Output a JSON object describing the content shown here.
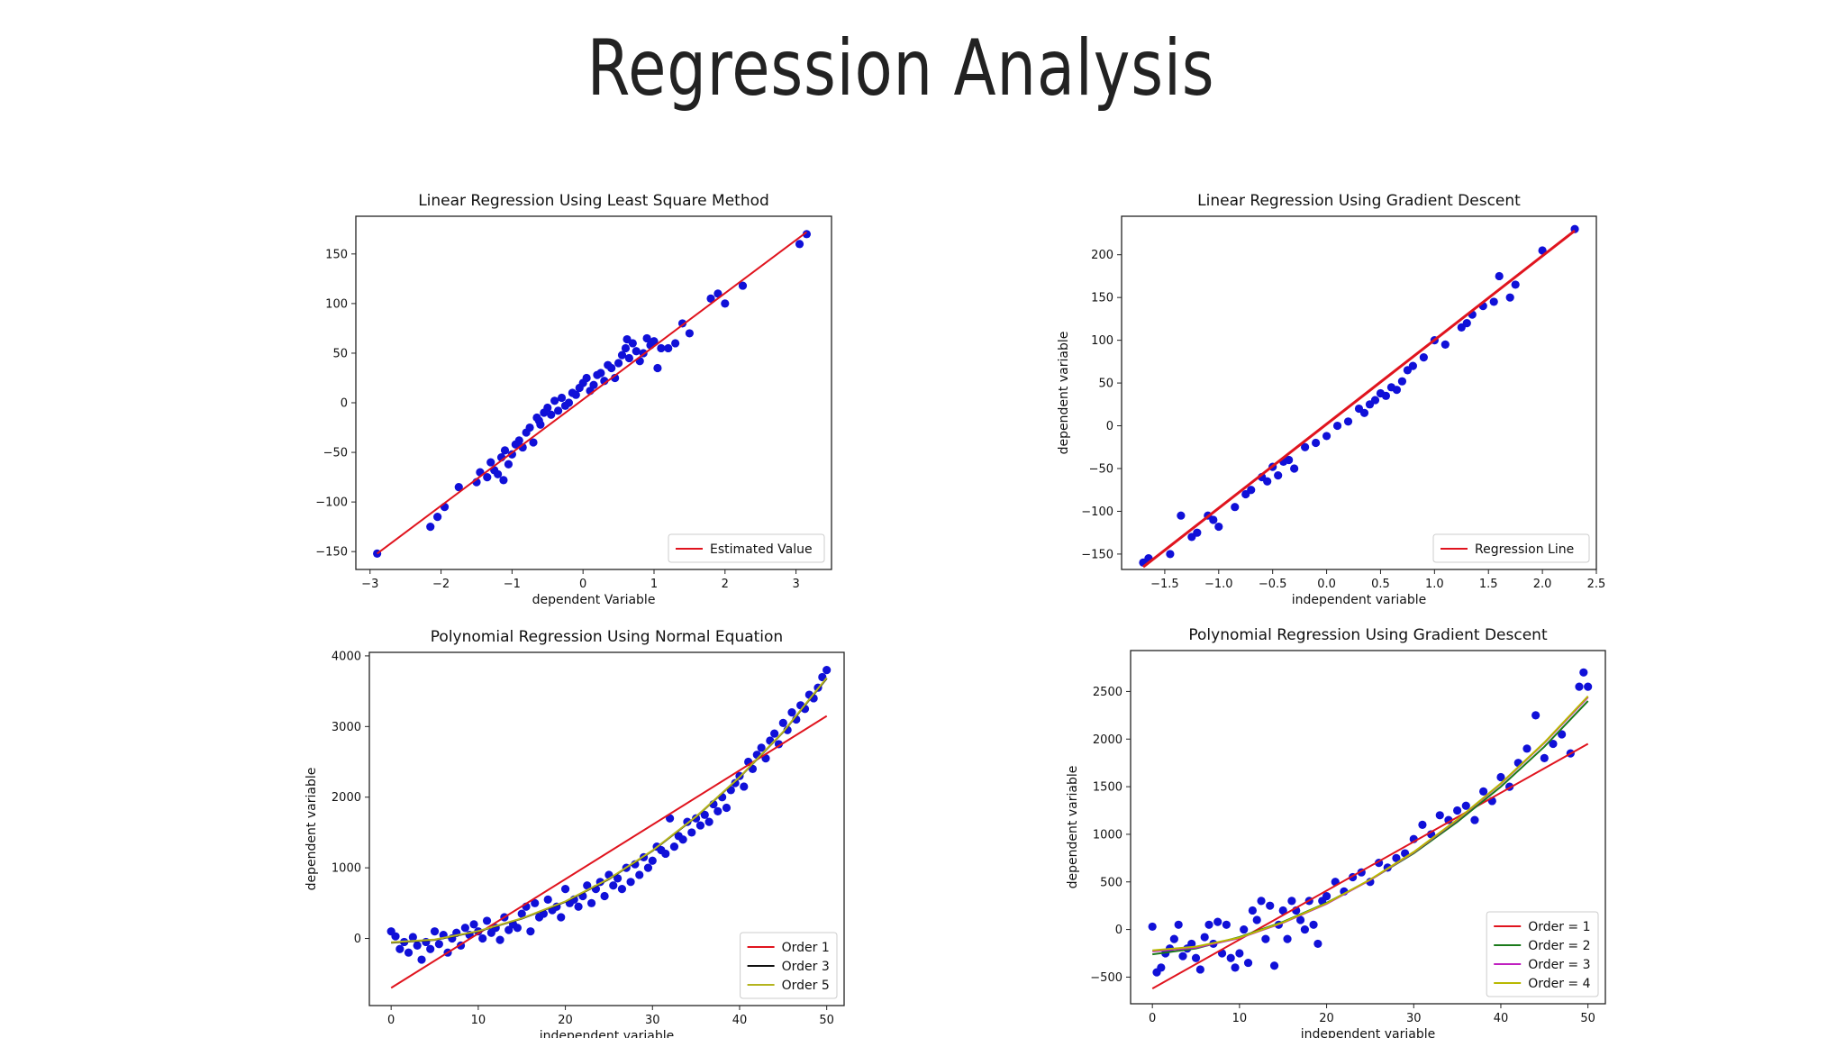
{
  "page": {
    "title": "Regression Analysis"
  },
  "colors": {
    "points": "#1010d8",
    "order1": "#e0141e",
    "order2": "#1b7a1b",
    "order3_black": "#111111",
    "order3_purple": "#c020c0",
    "order4": "#b8b800",
    "order5": "#b4b41e"
  },
  "chart_data": [
    {
      "type": "scatter",
      "title": "Linear Regression Using Least Square Method",
      "xlabel": "dependent Variable",
      "ylabel": "",
      "xlim": [
        -3.2,
        3.5
      ],
      "ylim": [
        -168,
        188
      ],
      "xticks": [
        -3,
        -2,
        -1,
        0,
        1,
        2,
        3
      ],
      "xtick_labels": [
        "−3",
        "−2",
        "−1",
        "0",
        "1",
        "2",
        "3"
      ],
      "yticks": [
        -150,
        -100,
        -50,
        0,
        50,
        100,
        150
      ],
      "ytick_labels": [
        "−150",
        "−100",
        "−50",
        "0",
        "50",
        "100",
        "150"
      ],
      "legend_position": "bottom-right",
      "legend": [
        {
          "label": "Estimated Value",
          "color": "#e0141e"
        }
      ],
      "lines": [
        {
          "name": "Estimated Value",
          "color": "#e0141e",
          "x": [
            -2.9,
            3.15
          ],
          "y": [
            -152,
            172
          ]
        }
      ],
      "points": {
        "x": [
          -2.9,
          -2.15,
          -2.05,
          -1.95,
          -1.75,
          -1.5,
          -1.45,
          -1.35,
          -1.3,
          -1.25,
          -1.2,
          -1.15,
          -1.1,
          -1.05,
          -1.0,
          -0.95,
          -0.9,
          -0.85,
          -0.8,
          -0.75,
          -0.7,
          -0.65,
          -0.6,
          -0.55,
          -0.5,
          -0.45,
          -0.4,
          -0.35,
          -0.3,
          -0.25,
          -0.2,
          -0.15,
          -0.1,
          -0.05,
          0.0,
          0.05,
          0.1,
          0.15,
          0.2,
          0.25,
          0.3,
          0.35,
          0.4,
          0.45,
          0.5,
          0.55,
          0.6,
          0.65,
          0.7,
          0.75,
          0.8,
          0.85,
          0.9,
          0.95,
          1.0,
          1.05,
          1.1,
          1.2,
          1.3,
          1.4,
          1.5,
          1.8,
          1.9,
          2.0,
          2.25,
          3.05,
          3.15,
          0.62,
          -0.62,
          -1.12
        ],
        "y": [
          -152,
          -125,
          -115,
          -105,
          -85,
          -80,
          -70,
          -75,
          -60,
          -68,
          -72,
          -55,
          -48,
          -62,
          -52,
          -42,
          -38,
          -45,
          -30,
          -25,
          -40,
          -15,
          -22,
          -10,
          -5,
          -12,
          2,
          -8,
          5,
          -3,
          0,
          10,
          8,
          15,
          20,
          25,
          12,
          18,
          28,
          30,
          22,
          38,
          35,
          25,
          40,
          48,
          55,
          45,
          60,
          52,
          42,
          50,
          65,
          58,
          62,
          35,
          55,
          55,
          60,
          80,
          70,
          105,
          110,
          100,
          118,
          160,
          170,
          64,
          -18,
          -78
        ]
      }
    },
    {
      "type": "scatter",
      "title": "Linear Regression Using Gradient Descent",
      "xlabel": "independent variable",
      "ylabel": "dependent variable",
      "xlim": [
        -1.9,
        2.5
      ],
      "ylim": [
        -168,
        245
      ],
      "xticks": [
        -1.5,
        -1.0,
        -0.5,
        0.0,
        0.5,
        1.0,
        1.5,
        2.0,
        2.5
      ],
      "xtick_labels": [
        "−1.5",
        "−1.0",
        "−0.5",
        "0.0",
        "0.5",
        "1.0",
        "1.5",
        "2.0",
        "2.5"
      ],
      "yticks": [
        -150,
        -100,
        -50,
        0,
        50,
        100,
        150,
        200
      ],
      "ytick_labels": [
        "−150",
        "−100",
        "−50",
        "0",
        "50",
        "100",
        "150",
        "200"
      ],
      "legend_position": "bottom-right",
      "legend": [
        {
          "label": "Regression Line",
          "color": "#e0141e"
        }
      ],
      "lines": [
        {
          "name": "Regression Line",
          "color": "#e0141e",
          "x": [
            -1.7,
            2.3
          ],
          "y": [
            -165,
            228
          ]
        }
      ],
      "points": {
        "x": [
          -1.7,
          -1.65,
          -1.45,
          -1.35,
          -1.25,
          -1.2,
          -1.1,
          -1.05,
          -1.0,
          -0.85,
          -0.75,
          -0.7,
          -0.6,
          -0.55,
          -0.5,
          -0.45,
          -0.4,
          -0.35,
          -0.3,
          -0.2,
          -0.1,
          0.0,
          0.1,
          0.2,
          0.3,
          0.35,
          0.4,
          0.45,
          0.5,
          0.55,
          0.6,
          0.65,
          0.7,
          0.75,
          0.8,
          0.9,
          1.0,
          1.1,
          1.25,
          1.3,
          1.35,
          1.45,
          1.55,
          1.6,
          1.7,
          1.75,
          2.0,
          2.3
        ],
        "y": [
          -160,
          -155,
          -150,
          -105,
          -130,
          -125,
          -105,
          -110,
          -118,
          -95,
          -80,
          -75,
          -60,
          -65,
          -48,
          -58,
          -42,
          -40,
          -50,
          -25,
          -20,
          -12,
          0,
          5,
          20,
          15,
          25,
          30,
          38,
          35,
          45,
          42,
          52,
          65,
          70,
          80,
          100,
          95,
          115,
          120,
          130,
          140,
          145,
          175,
          150,
          165,
          205,
          230
        ]
      }
    },
    {
      "type": "scatter",
      "title": "Polynomial Regression Using Normal Equation",
      "xlabel": "independent variable",
      "ylabel": "dependent variable",
      "xlim": [
        -2.5,
        52
      ],
      "ylim": [
        -950,
        4050
      ],
      "xticks": [
        0,
        10,
        20,
        30,
        40,
        50
      ],
      "xtick_labels": [
        "0",
        "10",
        "20",
        "30",
        "40",
        "50"
      ],
      "yticks": [
        0,
        1000,
        2000,
        3000,
        4000
      ],
      "ytick_labels": [
        "0",
        "1000",
        "2000",
        "3000",
        "4000"
      ],
      "legend_position": "bottom-right",
      "legend": [
        {
          "label": "Order 1",
          "color": "#e0141e"
        },
        {
          "label": "Order 3",
          "color": "#111111"
        },
        {
          "label": "Order 5",
          "color": "#b4b41e"
        }
      ],
      "lines": [
        {
          "name": "Order 1",
          "color": "#e0141e",
          "x": [
            0,
            50
          ],
          "y": [
            -700,
            3150
          ]
        },
        {
          "name": "Order 3",
          "color": "#111111",
          "x": [
            0,
            5,
            10,
            15,
            20,
            25,
            30,
            35,
            40,
            45,
            50
          ],
          "y": [
            -60,
            -20,
            100,
            280,
            520,
            840,
            1240,
            1720,
            2280,
            2920,
            3680
          ]
        },
        {
          "name": "Order 5",
          "color": "#b4b41e",
          "x": [
            0,
            5,
            10,
            15,
            20,
            25,
            30,
            35,
            40,
            45,
            50
          ],
          "y": [
            -55,
            -15,
            105,
            285,
            525,
            845,
            1245,
            1725,
            2285,
            2925,
            3690
          ]
        }
      ],
      "points": {
        "x": [
          0,
          0.5,
          1,
          1.5,
          2,
          2.5,
          3,
          3.5,
          4,
          4.5,
          5,
          5.5,
          6,
          6.5,
          7,
          7.5,
          8,
          8.5,
          9,
          9.5,
          10,
          10.5,
          11,
          11.5,
          12,
          12.5,
          13,
          13.5,
          14,
          14.5,
          15,
          15.5,
          16,
          16.5,
          17,
          17.5,
          18,
          18.5,
          19,
          19.5,
          20,
          20.5,
          21,
          21.5,
          22,
          22.5,
          23,
          23.5,
          24,
          24.5,
          25,
          25.5,
          26,
          26.5,
          27,
          27.5,
          28,
          28.5,
          29,
          29.5,
          30,
          30.5,
          31,
          31.5,
          32,
          32.5,
          33,
          33.5,
          34,
          34.5,
          35,
          35.5,
          36,
          36.5,
          37,
          37.5,
          38,
          38.5,
          39,
          39.5,
          40,
          40.5,
          41,
          41.5,
          42,
          42.5,
          43,
          43.5,
          44,
          44.5,
          45,
          45.5,
          46,
          46.5,
          47,
          47.5,
          48,
          48.5,
          49,
          49.5,
          50
        ],
        "y": [
          100,
          30,
          -150,
          -50,
          -200,
          20,
          -100,
          -300,
          -50,
          -150,
          100,
          -80,
          50,
          -200,
          0,
          80,
          -100,
          150,
          50,
          200,
          100,
          0,
          250,
          80,
          150,
          -20,
          300,
          120,
          200,
          150,
          350,
          450,
          100,
          500,
          300,
          350,
          550,
          400,
          450,
          300,
          700,
          500,
          550,
          450,
          600,
          750,
          500,
          700,
          800,
          600,
          900,
          750,
          850,
          700,
          1000,
          800,
          1050,
          900,
          1150,
          1000,
          1100,
          1300,
          1250,
          1200,
          1700,
          1300,
          1450,
          1400,
          1650,
          1500,
          1700,
          1600,
          1750,
          1650,
          1900,
          1800,
          2000,
          1850,
          2100,
          2200,
          2300,
          2150,
          2500,
          2400,
          2600,
          2700,
          2550,
          2800,
          2900,
          2750,
          3050,
          2950,
          3200,
          3100,
          3300,
          3250,
          3450,
          3400,
          3550,
          3700,
          3800
        ]
      }
    },
    {
      "type": "scatter",
      "title": "Polynomial Regression Using Gradient Descent",
      "xlabel": "independent variable",
      "ylabel": "dependent variable",
      "xlim": [
        -2.5,
        52
      ],
      "ylim": [
        -780,
        2930
      ],
      "xticks": [
        0,
        10,
        20,
        30,
        40,
        50
      ],
      "xtick_labels": [
        "0",
        "10",
        "20",
        "30",
        "40",
        "50"
      ],
      "yticks": [
        -500,
        0,
        500,
        1000,
        1500,
        2000,
        2500
      ],
      "ytick_labels": [
        "−500",
        "0",
        "500",
        "1000",
        "1500",
        "2000",
        "2500"
      ],
      "legend_position": "bottom-right",
      "legend": [
        {
          "label": "Order = 1",
          "color": "#e0141e"
        },
        {
          "label": "Order = 2",
          "color": "#1b7a1b"
        },
        {
          "label": "Order = 3",
          "color": "#c020c0"
        },
        {
          "label": "Order = 4",
          "color": "#b8b800"
        }
      ],
      "lines": [
        {
          "name": "Order = 1",
          "color": "#e0141e",
          "x": [
            0,
            50
          ],
          "y": [
            -620,
            1950
          ]
        },
        {
          "name": "Order = 2",
          "color": "#1b7a1b",
          "x": [
            0,
            5,
            10,
            15,
            20,
            25,
            30,
            35,
            40,
            45,
            50
          ],
          "y": [
            -260,
            -200,
            -80,
            80,
            280,
            520,
            800,
            1130,
            1500,
            1920,
            2400
          ]
        },
        {
          "name": "Order = 3",
          "color": "#c020c0",
          "x": [
            0,
            5,
            10,
            15,
            20,
            25,
            30,
            35,
            40,
            45,
            50
          ],
          "y": [
            -230,
            -190,
            -90,
            70,
            270,
            520,
            810,
            1150,
            1530,
            1960,
            2440
          ]
        },
        {
          "name": "Order = 4",
          "color": "#b8b800",
          "x": [
            0,
            5,
            10,
            15,
            20,
            25,
            30,
            35,
            40,
            45,
            50
          ],
          "y": [
            -220,
            -180,
            -85,
            75,
            275,
            525,
            815,
            1155,
            1535,
            1965,
            2450
          ]
        }
      ],
      "points": {
        "x": [
          0,
          0.5,
          1,
          1.5,
          2,
          2.5,
          3,
          3.5,
          4,
          4.5,
          5,
          5.5,
          6,
          6.5,
          7,
          7.5,
          8,
          8.5,
          9,
          9.5,
          10,
          10.5,
          11,
          11.5,
          12,
          12.5,
          13,
          13.5,
          14,
          14.5,
          15,
          15.5,
          16,
          16.5,
          17,
          17.5,
          18,
          18.5,
          19,
          19.5,
          20,
          21,
          22,
          23,
          24,
          25,
          26,
          27,
          28,
          29,
          30,
          31,
          32,
          33,
          34,
          35,
          36,
          37,
          38,
          39,
          40,
          41,
          42,
          43,
          44,
          45,
          46,
          47,
          48,
          49,
          49.5,
          50
        ],
        "y": [
          30,
          -450,
          -400,
          -250,
          -200,
          -100,
          50,
          -280,
          -200,
          -150,
          -300,
          -420,
          -80,
          50,
          -150,
          80,
          -250,
          50,
          -300,
          -400,
          -250,
          0,
          -350,
          200,
          100,
          300,
          -100,
          250,
          -380,
          50,
          200,
          -100,
          300,
          200,
          100,
          0,
          300,
          50,
          -150,
          300,
          350,
          500,
          400,
          550,
          600,
          500,
          700,
          650,
          750,
          800,
          950,
          1100,
          1000,
          1200,
          1150,
          1250,
          1300,
          1150,
          1450,
          1350,
          1600,
          1500,
          1750,
          1900,
          2250,
          1800,
          1950,
          2050,
          1850,
          2550,
          2700,
          2550
        ]
      }
    }
  ]
}
